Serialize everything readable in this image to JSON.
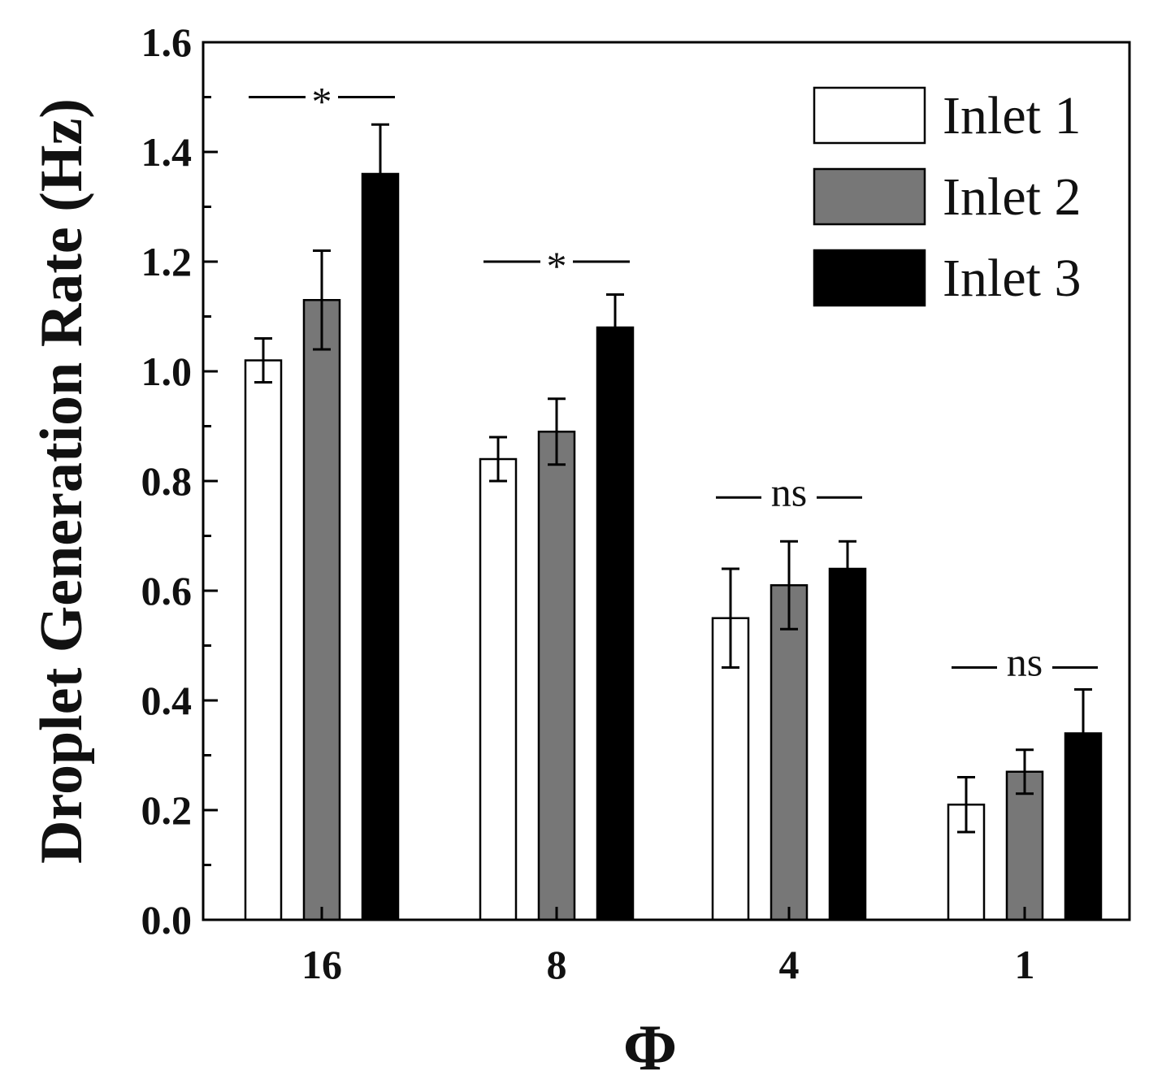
{
  "chart_data": {
    "type": "bar",
    "xlabel": "Φ",
    "ylabel": "Droplet Generation Rate (Hz)",
    "categories": [
      "16",
      "8",
      "4",
      "1"
    ],
    "ylim": [
      0,
      1.6
    ],
    "y_ticks": [
      "0.0",
      "0.2",
      "0.4",
      "0.6",
      "0.8",
      "1.0",
      "1.2",
      "1.4",
      "1.6"
    ],
    "grid": false,
    "legend_position": "top-right",
    "series": [
      {
        "name": "Inlet 1",
        "color": "#ffffff",
        "values": [
          1.02,
          0.84,
          0.55,
          0.21
        ],
        "errors": [
          0.04,
          0.04,
          0.09,
          0.05
        ]
      },
      {
        "name": "Inlet 2",
        "color": "#777777",
        "values": [
          1.13,
          0.89,
          0.61,
          0.27
        ],
        "errors": [
          0.09,
          0.06,
          0.08,
          0.04
        ]
      },
      {
        "name": "Inlet 3",
        "color": "#000000",
        "values": [
          1.36,
          1.08,
          0.64,
          0.34
        ],
        "errors": [
          0.09,
          0.06,
          0.05,
          0.08
        ]
      }
    ],
    "significance": [
      {
        "category": "16",
        "label": "*",
        "y": 1.5
      },
      {
        "category": "8",
        "label": "*",
        "y": 1.2
      },
      {
        "category": "4",
        "label": "ns",
        "y": 0.77
      },
      {
        "category": "1",
        "label": "ns",
        "y": 0.46
      }
    ]
  }
}
